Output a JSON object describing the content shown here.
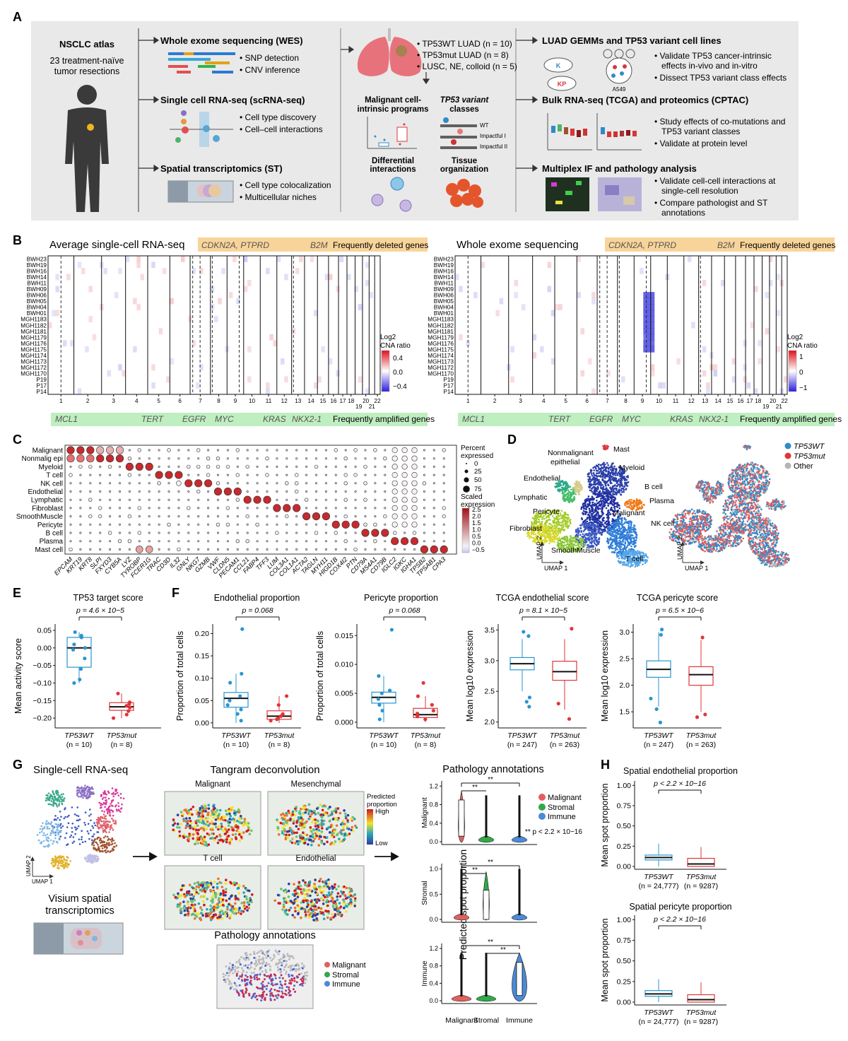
{
  "panelA": {
    "letter": "A",
    "atlas_title": "NSCLC atlas",
    "atlas_sub1": "23 treatment-naïve",
    "atlas_sub2": "tumor resections",
    "wes": {
      "title": "Whole exome sequencing (WES)",
      "b1": "• SNP detection",
      "b2": "• CNV inference"
    },
    "scrna": {
      "title": "Single cell RNA-seq (scRNA-seq)",
      "b1": "• Cell type discovery",
      "b2": "• Cell–cell interactions"
    },
    "st": {
      "title": "Spatial transcriptomics (ST)",
      "b1": "• Cell type colocalization",
      "b2": "• Multicellular niches"
    },
    "lung": {
      "b1": "• TP53WT LUAD (n = 10)",
      "b2": "• TP53mut LUAD (n = 8)",
      "b3": "• LUSC, NE, colloid (n = 5)"
    },
    "mid": {
      "mal1": "Malignant cell-",
      "mal2": "intrinsic programs",
      "tv1": "TP53 variant",
      "tv2": "classes",
      "wt": "WT",
      "imp1": "Impactful I",
      "imp2": "Impactful II",
      "di1": "Differential",
      "di2": "interactions",
      "to1": "Tissue",
      "to2": "organization"
    },
    "gemm": {
      "title": "LUAD GEMMs and TP53 variant cell lines",
      "b1": "• Validate TP53 cancer-intrinsic",
      "b1b": "effects in-vivo and in-vitro",
      "b2": "• Dissect TP53 variant class effects",
      "k": "K",
      "kp": "KP",
      "a549": "A549"
    },
    "bulk": {
      "title": "Bulk RNA-seq (TCGA) and proteomics (CPTAC)",
      "b1": "• Study effects of co-mutations and",
      "b1b": "TP53 variant classes",
      "b2": "• Validate at protein level"
    },
    "mif": {
      "title": "Multiplex IF and pathology analysis",
      "b1": "• Validate cell-cell interactions at",
      "b1b": "single-cell resolution",
      "b2": "• Compare pathologist and ST",
      "b2b": "annotations"
    }
  },
  "panelB": {
    "letter": "B",
    "left_title": "Average single-cell RNA-seq",
    "right_title": "Whole exome sequencing",
    "del_genes1": "CDKN2A, PTPRD",
    "del_genes2": "B2M",
    "del_label": "Frequently deleted genes",
    "amp_label": "Frequently amplified genes",
    "amp_genes": [
      "MCL1",
      "TERT",
      "EGFR",
      "MYC",
      "KRAS",
      "NKX2-1"
    ],
    "samples": [
      "BWH23",
      "BWH19",
      "BWH16",
      "BWH14",
      "BWH11",
      "BWH09",
      "BWH06",
      "BWH05",
      "BWH04",
      "BWH01",
      "MGH1183",
      "MGH1182",
      "MGH1181",
      "MGH1179",
      "MGH1176",
      "MGH1175",
      "MGH1174",
      "MGH1173",
      "MGH1172",
      "MGH1170",
      "P19",
      "P17",
      "P14"
    ],
    "chrom_top": [
      "1",
      "2",
      "3",
      "4",
      "5",
      "6",
      "7",
      "8",
      "9",
      "10",
      "11",
      "12",
      "13",
      "14",
      "15",
      "16",
      "17",
      "18",
      "20",
      "22"
    ],
    "chrom_bot": [
      "19",
      "21"
    ],
    "legend_title1": "Log2",
    "legend_title2": "CNA ratio",
    "left_ticks": [
      "0.4",
      "0.0",
      "−0.4"
    ],
    "right_ticks": [
      "1",
      "0",
      "−1"
    ]
  },
  "panelC": {
    "letter": "C",
    "rows": [
      "Malignant",
      "Nonmalig epi",
      "Myeloid",
      "T cell",
      "NK cell",
      "Endothelial",
      "Lymphatic",
      "Fibroblast",
      "SmoothMuscle",
      "Pericyte",
      "B cell",
      "Plasma",
      "Mast cell"
    ],
    "genes": [
      "EPCAM",
      "KRT19",
      "KRT8",
      "SLPI",
      "FXYD3",
      "CYB5A",
      "LYZ",
      "TYROBP",
      "FCER1G",
      "TRAC",
      "CD3D",
      "IL32",
      "GNLY",
      "NKG7",
      "GZMB",
      "VWF",
      "CLDN5",
      "PECAM1",
      "CCL21",
      "FABP4",
      "TFF3",
      "LUM",
      "COL3A1",
      "COL1A1",
      "ACTA2",
      "TAGLN",
      "MYH11",
      "HIGD1B",
      "COX4I2",
      "PTN",
      "CD79A",
      "MS4A1",
      "CD79B",
      "IGLC2",
      "IGKC",
      "IGHA1",
      "TPSB2",
      "TPSAB1",
      "CPA3"
    ],
    "size_title1": "Percent",
    "size_title2": "expressed",
    "size_ticks": [
      "0",
      "25",
      "50",
      "75"
    ],
    "color_title1": "Scaled",
    "color_title2": "expression",
    "color_ticks": [
      "2.5",
      "2.0",
      "1.5",
      "1.0",
      "0.5",
      "0.0",
      "−0.5"
    ]
  },
  "panelD": {
    "letter": "D",
    "labels": [
      "Mast",
      "Nonmalignant",
      "epithelial",
      "Myeloid",
      "Endothelial",
      "Lymphatic",
      "B cell",
      "Plasma",
      "Pericyte",
      "Malignant",
      "Fibroblast",
      "NK cell",
      "SmoothMuscle",
      "T cell"
    ],
    "axis_y": "UMAP 2",
    "axis_x": "UMAP 1",
    "legend": [
      "TP53WT",
      "TP53mut",
      "Other"
    ],
    "colors": {
      "wt": "#2e8bc8",
      "mut": "#e0363a",
      "other": "#b5b5b5"
    }
  },
  "panelE": {
    "letter": "E",
    "title": "TP53 target score",
    "p": "p = 4.6 × 10−5",
    "ylabel": "Mean activity score",
    "yticks": [
      "0.05",
      "0.00",
      "−0.05",
      "−0.10",
      "−0.15",
      "−0.20"
    ],
    "xlab1": "TP53WT",
    "xlab1b": "(n = 10)",
    "xlab2": "TP53mut",
    "xlab2b": "(n = 8)"
  },
  "panelF": {
    "letter": "F",
    "plots": [
      {
        "title": "Endothelial proportion",
        "p": "p = 0.068",
        "ylabel": "Proportion of total cells",
        "yticks": [
          "0.20",
          "0.15",
          "0.10",
          "0.05",
          "0.00"
        ],
        "n1": "(n = 10)",
        "n2": "(n = 8)"
      },
      {
        "title": "Pericyte proportion",
        "p": "p = 0.068",
        "ylabel": "Proportion of total cells",
        "yticks": [
          "0.015",
          "0.010",
          "0.005",
          "0.000"
        ],
        "n1": "(n = 10)",
        "n2": "(n = 8)"
      },
      {
        "title": "TCGA endothelial score",
        "p": "p = 8.1 × 10−5",
        "ylabel": "Mean log10 expression",
        "yticks": [
          "3.5",
          "3.0",
          "2.5",
          "2.0"
        ],
        "n1": "(n = 247)",
        "n2": "(n = 263)"
      },
      {
        "title": "TCGA pericyte score",
        "p": "p = 6.5 × 10−6",
        "ylabel": "Mean log10 expression",
        "yticks": [
          "3.0",
          "2.5",
          "2.0",
          "1.5"
        ],
        "n1": "(n = 247)",
        "n2": "(n = 263)"
      }
    ],
    "wt": "TP53WT",
    "mut": "TP53mut"
  },
  "panelG": {
    "letter": "G",
    "scrna_title": "Single-cell RNA-seq",
    "umap2": "UMAP 2",
    "umap1": "UMAP 1",
    "visium1": "Visium spatial",
    "visium2": "transcriptomics",
    "tangram_title": "Tangram deconvolution",
    "tiles": [
      "Malignant",
      "Mesenchymal",
      "T cell",
      "Endothelial"
    ],
    "pred_legend1": "Predicted",
    "pred_legend2": "proportion",
    "high": "High",
    "low": "Low",
    "path_title": "Pathology annotations",
    "path_legend": [
      "Malignant",
      "Stromal",
      "Immune"
    ],
    "violin_title": "Pathology annotations",
    "violin_ylabel": "Predicted spot proportion",
    "violin_rows": [
      "Malignant",
      "Stromal",
      "Immune"
    ],
    "violin_x": [
      "Malignant",
      "Stromal",
      "Immune"
    ],
    "sig": "**",
    "sig_note": "** p < 2.2 × 10−16",
    "yt_mal": [
      "1.2",
      "0.8",
      "0.4",
      "0.0"
    ],
    "yt_str": [
      "1.0",
      "0.5",
      "0.0"
    ],
    "yt_imm": [
      "1.2",
      "0.8",
      "0.4",
      "0.0"
    ]
  },
  "panelH": {
    "letter": "H",
    "plots": [
      {
        "title": "Spatial endothelial proportion",
        "p": "p < 2.2 × 10−16"
      },
      {
        "title": "Spatial pericyte proportion",
        "p": "p < 2.2 × 10−16"
      }
    ],
    "ylabel": "Mean spot proportion",
    "yticks": [
      "1.00",
      "0.75",
      "0.50",
      "0.25",
      "0.00"
    ],
    "wt": "TP53WT",
    "wtn": "(n = 24,777)",
    "mut": "TP53mut",
    "mutn": "(n = 9287)"
  }
}
